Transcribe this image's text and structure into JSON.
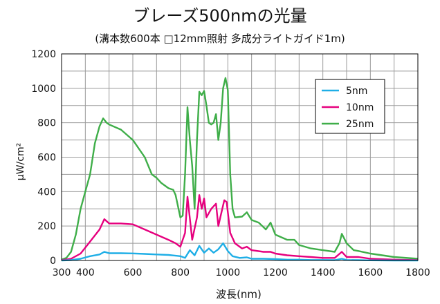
{
  "chart_data": {
    "type": "line",
    "title": "ブレーズ500nmの光量",
    "subtitle": "(溝本数600本 □12mm照射 多成分ライトガイド1m)",
    "xlabel": "波長(nm)",
    "ylabel": "μW/cm²",
    "xlim": [
      300,
      1800
    ],
    "ylim": [
      0,
      1200
    ],
    "x_ticks": [
      300,
      400,
      600,
      800,
      1000,
      1200,
      1400,
      1600,
      1800
    ],
    "y_ticks": [
      0,
      200,
      400,
      600,
      800,
      1000,
      1200
    ],
    "grid": true,
    "legend_position": "top-right",
    "series": [
      {
        "name": "5nm",
        "color": "#1eaee6",
        "points": [
          [
            300,
            0
          ],
          [
            340,
            2
          ],
          [
            380,
            10
          ],
          [
            420,
            25
          ],
          [
            460,
            35
          ],
          [
            480,
            50
          ],
          [
            500,
            42
          ],
          [
            550,
            42
          ],
          [
            600,
            41
          ],
          [
            650,
            38
          ],
          [
            700,
            35
          ],
          [
            750,
            32
          ],
          [
            800,
            25
          ],
          [
            820,
            15
          ],
          [
            840,
            60
          ],
          [
            860,
            30
          ],
          [
            880,
            85
          ],
          [
            900,
            45
          ],
          [
            920,
            70
          ],
          [
            940,
            45
          ],
          [
            960,
            65
          ],
          [
            980,
            100
          ],
          [
            1000,
            55
          ],
          [
            1020,
            25
          ],
          [
            1050,
            15
          ],
          [
            1080,
            18
          ],
          [
            1100,
            10
          ],
          [
            1150,
            10
          ],
          [
            1200,
            8
          ],
          [
            1250,
            5
          ],
          [
            1300,
            5
          ],
          [
            1350,
            3
          ],
          [
            1400,
            3
          ],
          [
            1450,
            2
          ],
          [
            1480,
            10
          ],
          [
            1500,
            3
          ],
          [
            1550,
            2
          ],
          [
            1600,
            1
          ],
          [
            1700,
            0
          ],
          [
            1800,
            0
          ]
        ]
      },
      {
        "name": "10nm",
        "color": "#e6007e",
        "points": [
          [
            300,
            2
          ],
          [
            340,
            10
          ],
          [
            380,
            40
          ],
          [
            420,
            110
          ],
          [
            460,
            180
          ],
          [
            480,
            240
          ],
          [
            500,
            215
          ],
          [
            550,
            215
          ],
          [
            600,
            210
          ],
          [
            650,
            180
          ],
          [
            700,
            150
          ],
          [
            750,
            120
          ],
          [
            780,
            100
          ],
          [
            800,
            80
          ],
          [
            820,
            160
          ],
          [
            830,
            370
          ],
          [
            850,
            120
          ],
          [
            870,
            250
          ],
          [
            880,
            380
          ],
          [
            890,
            300
          ],
          [
            900,
            360
          ],
          [
            910,
            250
          ],
          [
            930,
            300
          ],
          [
            950,
            330
          ],
          [
            960,
            200
          ],
          [
            970,
            260
          ],
          [
            985,
            350
          ],
          [
            995,
            340
          ],
          [
            1010,
            160
          ],
          [
            1030,
            100
          ],
          [
            1060,
            70
          ],
          [
            1080,
            80
          ],
          [
            1100,
            60
          ],
          [
            1150,
            50
          ],
          [
            1180,
            50
          ],
          [
            1200,
            40
          ],
          [
            1250,
            30
          ],
          [
            1300,
            25
          ],
          [
            1350,
            20
          ],
          [
            1400,
            15
          ],
          [
            1450,
            15
          ],
          [
            1480,
            50
          ],
          [
            1500,
            20
          ],
          [
            1550,
            20
          ],
          [
            1600,
            10
          ],
          [
            1700,
            5
          ],
          [
            1800,
            2
          ]
        ]
      },
      {
        "name": "25nm",
        "color": "#3fae49",
        "points": [
          [
            300,
            5
          ],
          [
            320,
            15
          ],
          [
            340,
            50
          ],
          [
            360,
            150
          ],
          [
            380,
            300
          ],
          [
            400,
            400
          ],
          [
            420,
            500
          ],
          [
            440,
            680
          ],
          [
            460,
            780
          ],
          [
            475,
            825
          ],
          [
            490,
            800
          ],
          [
            500,
            790
          ],
          [
            550,
            760
          ],
          [
            600,
            700
          ],
          [
            650,
            600
          ],
          [
            680,
            500
          ],
          [
            700,
            480
          ],
          [
            720,
            450
          ],
          [
            750,
            420
          ],
          [
            770,
            410
          ],
          [
            780,
            380
          ],
          [
            800,
            250
          ],
          [
            810,
            260
          ],
          [
            820,
            500
          ],
          [
            830,
            890
          ],
          [
            840,
            700
          ],
          [
            850,
            550
          ],
          [
            860,
            300
          ],
          [
            870,
            700
          ],
          [
            880,
            980
          ],
          [
            890,
            960
          ],
          [
            900,
            985
          ],
          [
            910,
            900
          ],
          [
            920,
            800
          ],
          [
            930,
            790
          ],
          [
            940,
            800
          ],
          [
            950,
            850
          ],
          [
            960,
            700
          ],
          [
            970,
            800
          ],
          [
            980,
            1000
          ],
          [
            990,
            1060
          ],
          [
            1000,
            990
          ],
          [
            1010,
            500
          ],
          [
            1020,
            300
          ],
          [
            1030,
            250
          ],
          [
            1060,
            255
          ],
          [
            1080,
            280
          ],
          [
            1100,
            235
          ],
          [
            1130,
            220
          ],
          [
            1160,
            180
          ],
          [
            1180,
            220
          ],
          [
            1200,
            150
          ],
          [
            1250,
            120
          ],
          [
            1280,
            120
          ],
          [
            1300,
            90
          ],
          [
            1350,
            70
          ],
          [
            1400,
            60
          ],
          [
            1450,
            50
          ],
          [
            1470,
            100
          ],
          [
            1480,
            155
          ],
          [
            1500,
            100
          ],
          [
            1530,
            60
          ],
          [
            1550,
            55
          ],
          [
            1600,
            40
          ],
          [
            1650,
            30
          ],
          [
            1700,
            20
          ],
          [
            1800,
            10
          ]
        ]
      }
    ]
  }
}
